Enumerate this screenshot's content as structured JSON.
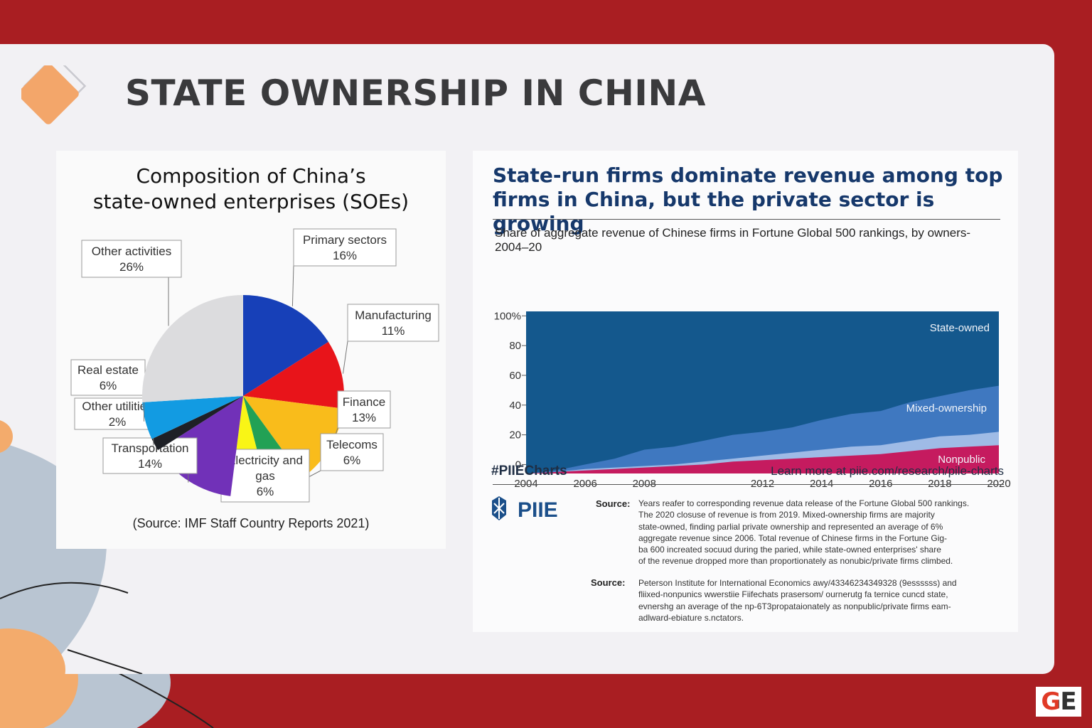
{
  "page": {
    "title": "STATE OWNERSHIP IN CHINA",
    "badge": "GE",
    "colors": {
      "background_red": "#a91e22",
      "panel": "#f2f1f4",
      "accent_orange": "#f4a261"
    }
  },
  "chart_data": [
    {
      "type": "pie",
      "title_lines": [
        "Composition of China’s",
        "state-owned enterprises (SOEs)"
      ],
      "source": "(Source: IMF Staff Country Reports 2021)",
      "slices": [
        {
          "label_lines": [
            "Primary sectors"
          ],
          "pct_label": "16%",
          "value": 16,
          "color": "#1740b8",
          "callout_pos": "top-right"
        },
        {
          "label_lines": [
            "Manufacturing"
          ],
          "pct_label": "11%",
          "value": 11,
          "color": "#e8141a",
          "callout_pos": "right"
        },
        {
          "label_lines": [
            "Finance"
          ],
          "pct_label": "13%",
          "value": 13,
          "color": "#f9bc1b",
          "callout_pos": "right"
        },
        {
          "label_lines": [
            "Telecoms"
          ],
          "pct_label": "6%",
          "value": 6,
          "color": "#22a155",
          "callout_pos": "bottom-right"
        },
        {
          "label_lines": [
            "Electricity and",
            "gas"
          ],
          "pct_label": "6%",
          "value": 6,
          "color": "#f9f516",
          "callout_pos": "bottom"
        },
        {
          "label_lines": [
            "Transportation"
          ],
          "pct_label": "14%",
          "value": 14,
          "color": "#7131b8",
          "callout_pos": "bottom-left"
        },
        {
          "label_lines": [
            "Other utilities"
          ],
          "pct_label": "2%",
          "value": 2,
          "color": "#1e2026",
          "callout_pos": "left"
        },
        {
          "label_lines": [
            "Real estate"
          ],
          "pct_label": "6%",
          "value": 6,
          "color": "#129be2",
          "callout_pos": "left"
        },
        {
          "label_lines": [
            "Other activities"
          ],
          "pct_label": "26%",
          "value": 26,
          "color": "#dcdcde",
          "callout_pos": "top-left"
        }
      ]
    },
    {
      "type": "area",
      "title_lines": [
        "State-run firms dominate revenue among top",
        "firms in China, but the private sector is growing"
      ],
      "subtitle_lines": [
        "Share of aggregate revenue of Chinese firms in Fortune Global 500 rankings, by owners-",
        "2004–20"
      ],
      "x": [
        2004,
        2005,
        2006,
        2007,
        2008,
        2009,
        2010,
        2011,
        2012,
        2013,
        2014,
        2015,
        2016,
        2017,
        2018,
        2019,
        2020
      ],
      "x_ticks": [
        "2004",
        "2006",
        "2008",
        "2012",
        "2014",
        "2016",
        "2018",
        "2020"
      ],
      "y_ticks": [
        "0",
        "20",
        "40",
        "60",
        "80",
        "100%"
      ],
      "ylim": [
        -6,
        103
      ],
      "series": [
        {
          "name": "Nonpublic",
          "color": "#c51b5f",
          "values": [
            -6,
            -5,
            -4,
            -3,
            -2,
            -1,
            0,
            2,
            3,
            4,
            5,
            6,
            7,
            9,
            11,
            12,
            13
          ]
        },
        {
          "name": "Mixed-ownership band",
          "color": "#9fbbe6",
          "values": [
            -6,
            -5,
            -3,
            -2,
            -1,
            0,
            2,
            4,
            6,
            8,
            10,
            12,
            13,
            16,
            19,
            20,
            22
          ]
        },
        {
          "name": "Mixed-ownership",
          "color": "#3f78c0",
          "values": [
            -6,
            -4,
            0,
            4,
            10,
            12,
            16,
            20,
            22,
            25,
            30,
            34,
            36,
            42,
            46,
            50,
            53
          ]
        },
        {
          "name": "State-owned",
          "color": "#14588d",
          "values": [
            103,
            103,
            103,
            103,
            103,
            103,
            103,
            103,
            103,
            103,
            103,
            103,
            103,
            103,
            103,
            103,
            103
          ]
        }
      ],
      "series_labels": [
        "State-owned",
        "Mixed-ownership",
        "Nonpublic"
      ]
    }
  ],
  "footer": {
    "hashtag": "#PIIECharts",
    "link": "Learn more at piie.com/research/pile-charts",
    "logo_text": "PIIE",
    "source_label": "Source:",
    "source1_lines": [
      "Years  reafer to corresponding revenue data release of the Fortune Global 500 rankings.",
      "The 2020 closuse of revenue is from 2019. Mixed-ownership firms are majority",
      "state-owned, finding parlial private ownership and represented an average of 6%",
      "aggregate revenue since 2006. Total revenue of Chinese firms in the Fortune Gig-",
      "ba  600 increated socuud during the paried, while state-owned enterprises' share",
      "of the revenue dropped more than proportionately as nonubic/private firms climbed."
    ],
    "source2_lines": [
      "Peterson Institute for International Economics awy/43346234349328 (9essssss) and",
      "fliixed-nonpunics wwerstiie Fiifechats prasersom/ ournerutg fa ternice cuncd state,",
      "evnershg an average of the np-6T3propataionately as nonpublic/private firms eam-",
      "adlward-ebiature s.nctators."
    ]
  }
}
